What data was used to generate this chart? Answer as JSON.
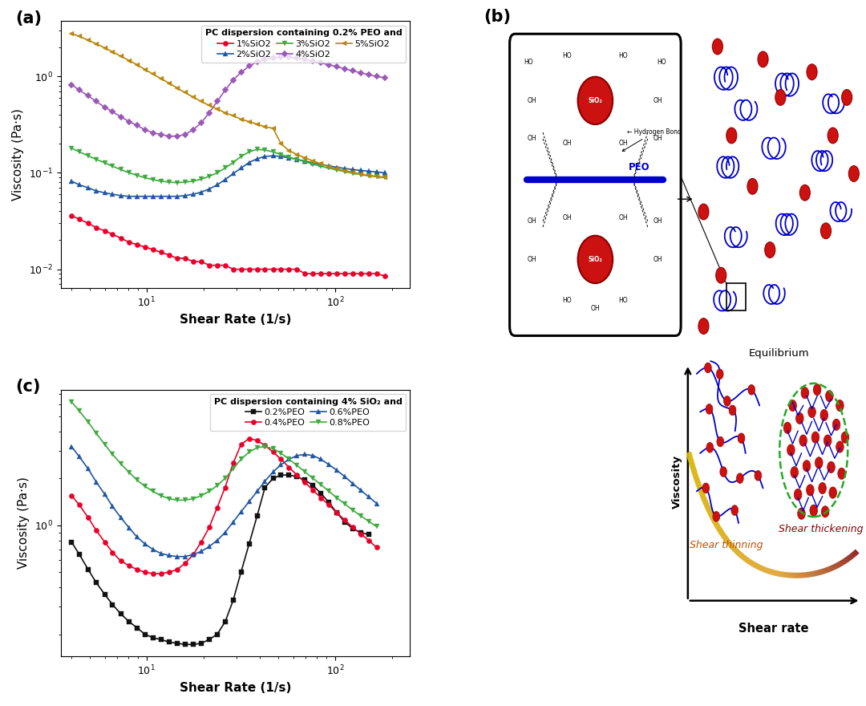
{
  "panel_a": {
    "title": "PC dispersion containing 0.2% PEO and",
    "xlabel": "Shear Rate (1/s)",
    "ylabel": "Viscosity (Pa·s)",
    "xlim": [
      3.5,
      250
    ],
    "series": [
      {
        "label": "1%SiO2",
        "color": "#e8002a",
        "marker": "o",
        "x": [
          4.0,
          4.4,
          4.9,
          5.4,
          6.0,
          6.6,
          7.3,
          8.1,
          8.9,
          9.8,
          10.8,
          11.9,
          13.2,
          14.5,
          16.0,
          17.7,
          19.5,
          21.5,
          23.7,
          26.1,
          28.8,
          31.7,
          35.0,
          38.6,
          42.5,
          46.9,
          51.7,
          57.0,
          62.8,
          69.3,
          76.4,
          84.2,
          92.8,
          102.3,
          112.7,
          124.2,
          136.9,
          150.9,
          166.3,
          183.3
        ],
        "y": [
          0.036,
          0.033,
          0.03,
          0.027,
          0.025,
          0.023,
          0.021,
          0.019,
          0.018,
          0.017,
          0.016,
          0.015,
          0.014,
          0.013,
          0.013,
          0.012,
          0.012,
          0.011,
          0.011,
          0.011,
          0.01,
          0.01,
          0.01,
          0.01,
          0.01,
          0.01,
          0.01,
          0.01,
          0.01,
          0.009,
          0.009,
          0.009,
          0.009,
          0.009,
          0.009,
          0.009,
          0.009,
          0.009,
          0.009,
          0.0085
        ]
      },
      {
        "label": "2%SiO2",
        "color": "#1e56a0",
        "marker": "^",
        "x": [
          4.0,
          4.4,
          4.9,
          5.4,
          6.0,
          6.6,
          7.3,
          8.1,
          8.9,
          9.8,
          10.8,
          11.9,
          13.2,
          14.5,
          16.0,
          17.7,
          19.5,
          21.5,
          23.7,
          26.1,
          28.8,
          31.7,
          35.0,
          38.6,
          42.5,
          46.9,
          51.7,
          57.0,
          62.8,
          69.3,
          76.4,
          84.2,
          92.8,
          102.3,
          112.7,
          124.2,
          136.9,
          150.9,
          166.3,
          183.3
        ],
        "y": [
          0.082,
          0.075,
          0.07,
          0.065,
          0.062,
          0.06,
          0.058,
          0.057,
          0.057,
          0.057,
          0.057,
          0.057,
          0.057,
          0.057,
          0.058,
          0.06,
          0.063,
          0.068,
          0.075,
          0.085,
          0.098,
          0.112,
          0.128,
          0.14,
          0.148,
          0.15,
          0.148,
          0.143,
          0.138,
          0.132,
          0.127,
          0.122,
          0.118,
          0.114,
          0.111,
          0.108,
          0.106,
          0.104,
          0.102,
          0.1
        ]
      },
      {
        "label": "3%SiO2",
        "color": "#3daa3d",
        "marker": "v",
        "x": [
          4.0,
          4.4,
          4.9,
          5.4,
          6.0,
          6.6,
          7.3,
          8.1,
          8.9,
          9.8,
          10.8,
          11.9,
          13.2,
          14.5,
          16.0,
          17.7,
          19.5,
          21.5,
          23.7,
          26.1,
          28.8,
          31.7,
          35.0,
          38.6,
          42.5,
          46.9,
          51.7,
          57.0,
          62.8,
          69.3,
          76.4,
          84.2,
          92.8,
          102.3,
          112.7,
          124.2,
          136.9,
          150.9,
          166.3,
          183.3
        ],
        "y": [
          0.18,
          0.165,
          0.15,
          0.138,
          0.127,
          0.117,
          0.108,
          0.1,
          0.094,
          0.089,
          0.085,
          0.082,
          0.08,
          0.079,
          0.08,
          0.082,
          0.086,
          0.092,
          0.1,
          0.112,
          0.128,
          0.148,
          0.165,
          0.175,
          0.172,
          0.165,
          0.155,
          0.145,
          0.138,
          0.13,
          0.123,
          0.117,
          0.112,
          0.107,
          0.103,
          0.099,
          0.096,
          0.093,
          0.091,
          0.089
        ]
      },
      {
        "label": "4%SiO2",
        "color": "#9b59b6",
        "marker": "D",
        "x": [
          4.0,
          4.4,
          4.9,
          5.4,
          6.0,
          6.6,
          7.3,
          8.1,
          8.9,
          9.8,
          10.8,
          11.9,
          13.2,
          14.5,
          16.0,
          17.7,
          19.5,
          21.5,
          23.7,
          26.1,
          28.8,
          31.7,
          35.0,
          38.6,
          42.5,
          46.9,
          51.7,
          57.0,
          62.8,
          69.3,
          76.4,
          84.2,
          92.8,
          102.3,
          112.7,
          124.2,
          136.9,
          150.9,
          166.3,
          183.3
        ],
        "y": [
          0.82,
          0.72,
          0.63,
          0.55,
          0.48,
          0.43,
          0.38,
          0.34,
          0.31,
          0.28,
          0.26,
          0.25,
          0.24,
          0.24,
          0.25,
          0.28,
          0.33,
          0.42,
          0.55,
          0.72,
          0.92,
          1.1,
          1.28,
          1.42,
          1.5,
          1.55,
          1.58,
          1.58,
          1.55,
          1.5,
          1.44,
          1.38,
          1.32,
          1.26,
          1.2,
          1.14,
          1.09,
          1.04,
          1.0,
          0.97
        ]
      },
      {
        "label": "5%SiO2",
        "color": "#b8860b",
        "marker": "<",
        "x": [
          4.0,
          4.4,
          4.9,
          5.4,
          6.0,
          6.6,
          7.3,
          8.1,
          8.9,
          9.8,
          10.8,
          11.9,
          13.2,
          14.5,
          16.0,
          17.7,
          19.5,
          21.5,
          23.7,
          26.1,
          28.8,
          31.7,
          35.0,
          38.6,
          42.5,
          46.9,
          51.7,
          57.0,
          62.8,
          69.3,
          76.4,
          84.2,
          92.8,
          102.3,
          112.7,
          124.2,
          136.9,
          150.9,
          166.3,
          183.3
        ],
        "y": [
          2.8,
          2.6,
          2.38,
          2.18,
          1.98,
          1.8,
          1.62,
          1.46,
          1.32,
          1.18,
          1.06,
          0.95,
          0.85,
          0.76,
          0.68,
          0.61,
          0.55,
          0.5,
          0.46,
          0.42,
          0.39,
          0.36,
          0.34,
          0.32,
          0.3,
          0.29,
          0.2,
          0.17,
          0.155,
          0.143,
          0.133,
          0.124,
          0.116,
          0.11,
          0.105,
          0.101,
          0.097,
          0.094,
          0.092,
          0.09
        ]
      }
    ]
  },
  "panel_c": {
    "title": "PC dispersion containing 4% SiO₂ and",
    "xlabel": "Shear Rate (1/s)",
    "ylabel": "Viscosity (Pa·s)",
    "xlim": [
      3.5,
      250
    ],
    "series": [
      {
        "label": "0.2%PEO",
        "color": "#111111",
        "marker": "s",
        "x": [
          4.0,
          4.4,
          4.9,
          5.4,
          6.0,
          6.6,
          7.3,
          8.1,
          8.9,
          9.8,
          10.8,
          11.9,
          13.2,
          14.5,
          16.0,
          17.7,
          19.5,
          21.5,
          23.7,
          26.1,
          28.8,
          31.7,
          35.0,
          38.6,
          42.5,
          46.9,
          51.7,
          57.0,
          62.8,
          69.3,
          76.4,
          84.2,
          92.8,
          102.3,
          112.7,
          124.2,
          136.9,
          150.9
        ],
        "y": [
          0.78,
          0.65,
          0.52,
          0.43,
          0.36,
          0.31,
          0.27,
          0.24,
          0.22,
          0.2,
          0.19,
          0.185,
          0.178,
          0.175,
          0.172,
          0.172,
          0.175,
          0.185,
          0.2,
          0.24,
          0.33,
          0.5,
          0.76,
          1.15,
          1.75,
          2.0,
          2.1,
          2.1,
          2.05,
          1.95,
          1.8,
          1.6,
          1.4,
          1.2,
          1.05,
          0.95,
          0.9,
          0.87
        ]
      },
      {
        "label": "0.4%PEO",
        "color": "#e8002a",
        "marker": "o",
        "x": [
          4.0,
          4.4,
          4.9,
          5.4,
          6.0,
          6.6,
          7.3,
          8.1,
          8.9,
          9.8,
          10.8,
          11.9,
          13.2,
          14.5,
          16.0,
          17.7,
          19.5,
          21.5,
          23.7,
          26.1,
          28.8,
          31.7,
          35.0,
          38.6,
          42.5,
          46.9,
          51.7,
          57.0,
          62.8,
          69.3,
          76.4,
          84.2,
          92.8,
          102.3,
          112.7,
          124.2,
          136.9,
          150.9,
          166.3
        ],
        "y": [
          1.55,
          1.35,
          1.12,
          0.93,
          0.78,
          0.67,
          0.59,
          0.55,
          0.52,
          0.5,
          0.49,
          0.49,
          0.5,
          0.52,
          0.57,
          0.65,
          0.78,
          0.97,
          1.3,
          1.75,
          2.5,
          3.3,
          3.6,
          3.5,
          3.25,
          2.95,
          2.65,
          2.35,
          2.1,
          1.88,
          1.68,
          1.5,
          1.35,
          1.2,
          1.08,
          0.97,
          0.88,
          0.8,
          0.72
        ]
      },
      {
        "label": "0.6%PEO",
        "color": "#1e56a0",
        "marker": "^",
        "x": [
          4.0,
          4.4,
          4.9,
          5.4,
          6.0,
          6.6,
          7.3,
          8.1,
          8.9,
          9.8,
          10.8,
          11.9,
          13.2,
          14.5,
          16.0,
          17.7,
          19.5,
          21.5,
          23.7,
          26.1,
          28.8,
          31.7,
          35.0,
          38.6,
          42.5,
          46.9,
          51.7,
          57.0,
          62.8,
          69.3,
          76.4,
          84.2,
          92.8,
          102.3,
          112.7,
          124.2,
          136.9,
          150.9,
          166.3
        ],
        "y": [
          3.2,
          2.75,
          2.3,
          1.9,
          1.58,
          1.32,
          1.12,
          0.96,
          0.84,
          0.76,
          0.7,
          0.66,
          0.64,
          0.63,
          0.63,
          0.65,
          0.68,
          0.73,
          0.8,
          0.9,
          1.05,
          1.22,
          1.42,
          1.65,
          1.92,
          2.2,
          2.45,
          2.65,
          2.8,
          2.85,
          2.8,
          2.65,
          2.45,
          2.25,
          2.05,
          1.85,
          1.68,
          1.52,
          1.38
        ]
      },
      {
        "label": "0.8%PEO",
        "color": "#3daa3d",
        "marker": "v",
        "x": [
          4.0,
          4.4,
          4.9,
          5.4,
          6.0,
          6.6,
          7.3,
          8.1,
          8.9,
          9.8,
          10.8,
          11.9,
          13.2,
          14.5,
          16.0,
          17.7,
          19.5,
          21.5,
          23.7,
          26.1,
          28.8,
          31.7,
          35.0,
          38.6,
          42.5,
          46.9,
          51.7,
          57.0,
          62.8,
          69.3,
          76.4,
          84.2,
          92.8,
          102.3,
          112.7,
          124.2,
          136.9,
          150.9,
          166.3
        ],
        "y": [
          6.2,
          5.4,
          4.6,
          3.9,
          3.3,
          2.85,
          2.48,
          2.18,
          1.95,
          1.78,
          1.65,
          1.55,
          1.48,
          1.45,
          1.45,
          1.48,
          1.55,
          1.65,
          1.8,
          2.0,
          2.3,
          2.65,
          2.95,
          3.15,
          3.2,
          3.1,
          2.9,
          2.65,
          2.42,
          2.2,
          2.0,
          1.82,
          1.65,
          1.5,
          1.37,
          1.25,
          1.15,
          1.06,
          0.98
        ]
      }
    ]
  },
  "background_color": "#ffffff",
  "panel_label_fontsize": 15,
  "axis_label_fontsize": 11,
  "legend_fontsize": 8,
  "tick_fontsize": 9
}
